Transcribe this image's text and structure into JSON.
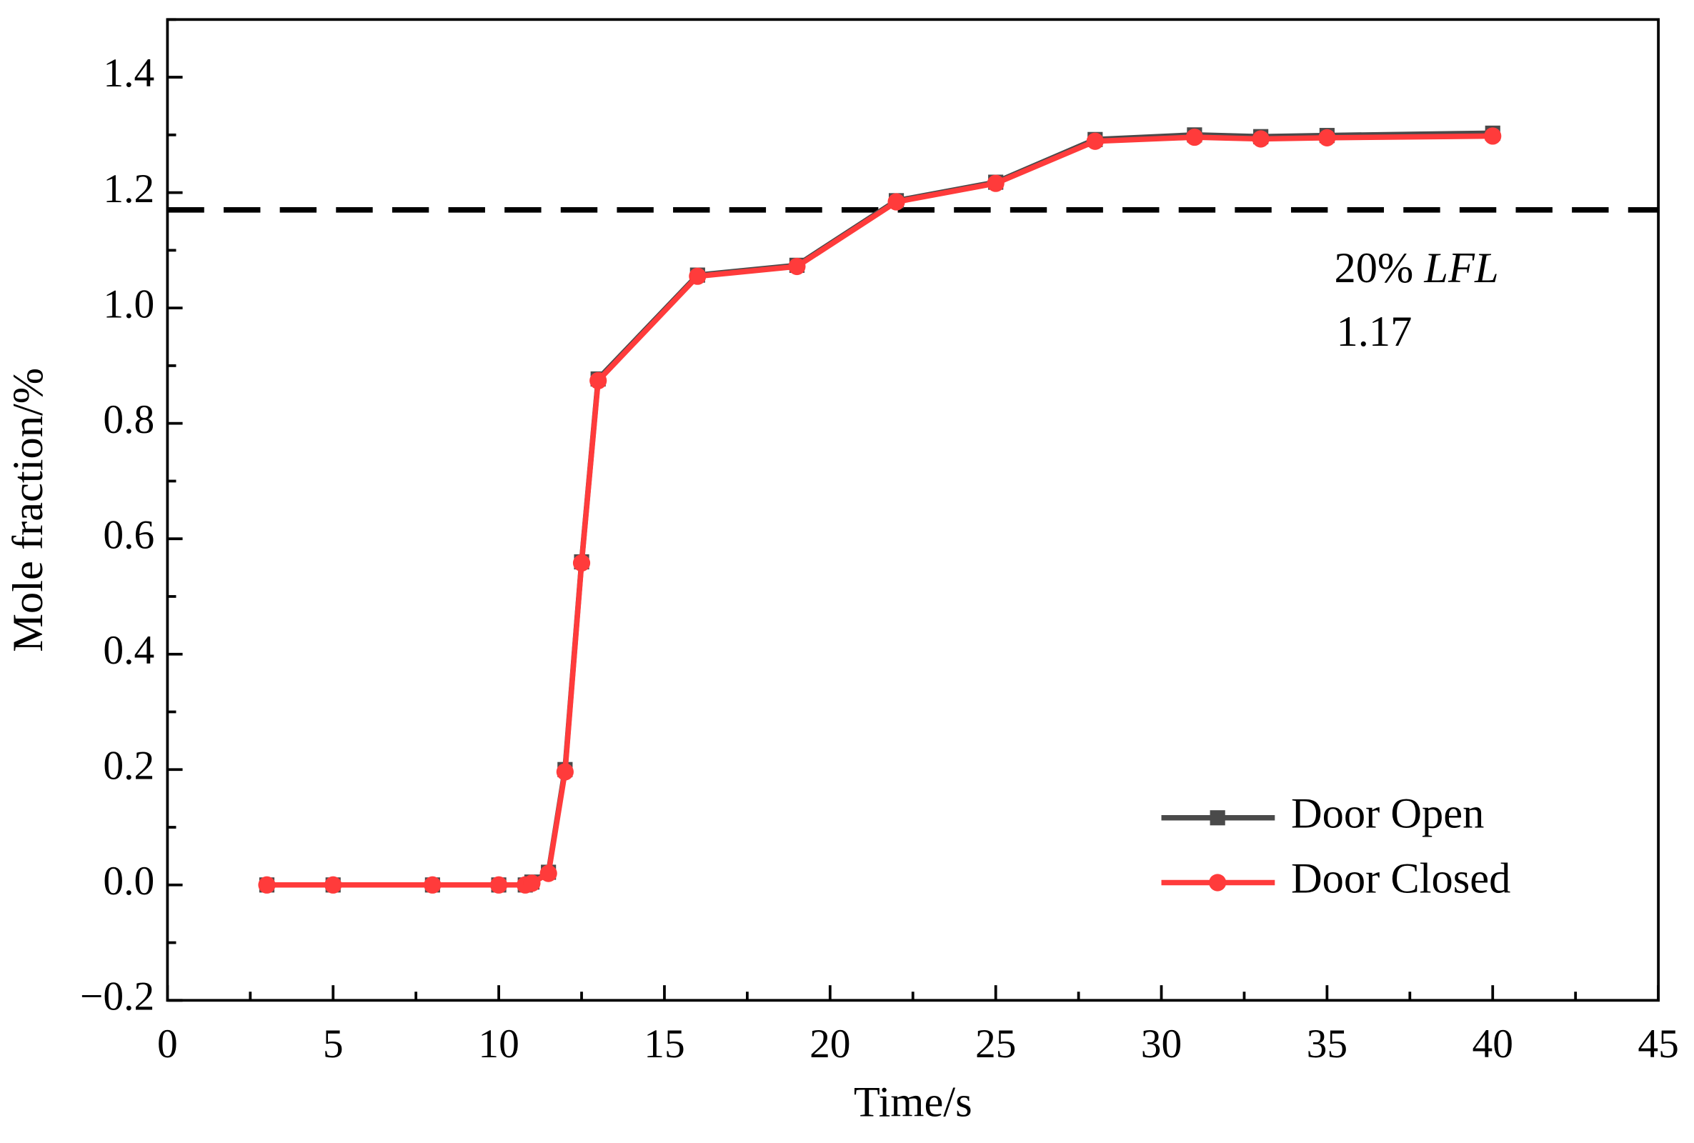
{
  "chart_data": {
    "type": "line",
    "xlabel": "Time/s",
    "ylabel": "Mole fraction/%",
    "x": [
      3,
      5,
      8,
      10,
      10.8,
      11,
      11.5,
      12,
      12.5,
      13,
      16,
      19,
      22,
      25,
      28,
      31,
      33,
      35,
      40
    ],
    "series": [
      {
        "name": "Door Open",
        "color": "#4a4a4a",
        "marker": "square",
        "values": [
          0,
          0,
          0,
          0,
          0,
          0.005,
          0.022,
          0.2,
          0.56,
          0.877,
          1.057,
          1.074,
          1.186,
          1.218,
          1.292,
          1.3,
          1.297,
          1.299,
          1.303
        ]
      },
      {
        "name": "Door Closed",
        "color": "#ff3b3b",
        "marker": "circle",
        "values": [
          0,
          0,
          0,
          0,
          0,
          0.003,
          0.02,
          0.196,
          0.558,
          0.874,
          1.055,
          1.072,
          1.184,
          1.216,
          1.289,
          1.296,
          1.293,
          1.295,
          1.298
        ]
      }
    ],
    "hline": {
      "value": 1.17,
      "color": "#000000",
      "label": [
        "20%",
        "LFL"
      ]
    },
    "xlim": [
      0,
      45
    ],
    "xticks": [
      0,
      5,
      10,
      15,
      20,
      25,
      30,
      35,
      40,
      45
    ],
    "xminorticks": [
      2.5,
      7.5,
      12.5,
      17.5,
      22.5,
      27.5,
      32.5,
      37.5,
      42.5
    ],
    "ylim": [
      -0.2,
      1.5
    ],
    "yticks": [
      {
        "value": -0.2,
        "label": "−0.2"
      },
      {
        "value": 0,
        "label": "0.0"
      },
      0.2,
      0.4,
      0.6,
      0.8,
      {
        "value": 1,
        "label": "1.0"
      },
      1.2,
      1.4
    ],
    "yminorticks": [
      -0.1,
      0.1,
      0.3,
      0.5,
      0.7,
      0.9,
      1.1,
      1.3,
      1.5
    ],
    "legend": "lower right"
  }
}
